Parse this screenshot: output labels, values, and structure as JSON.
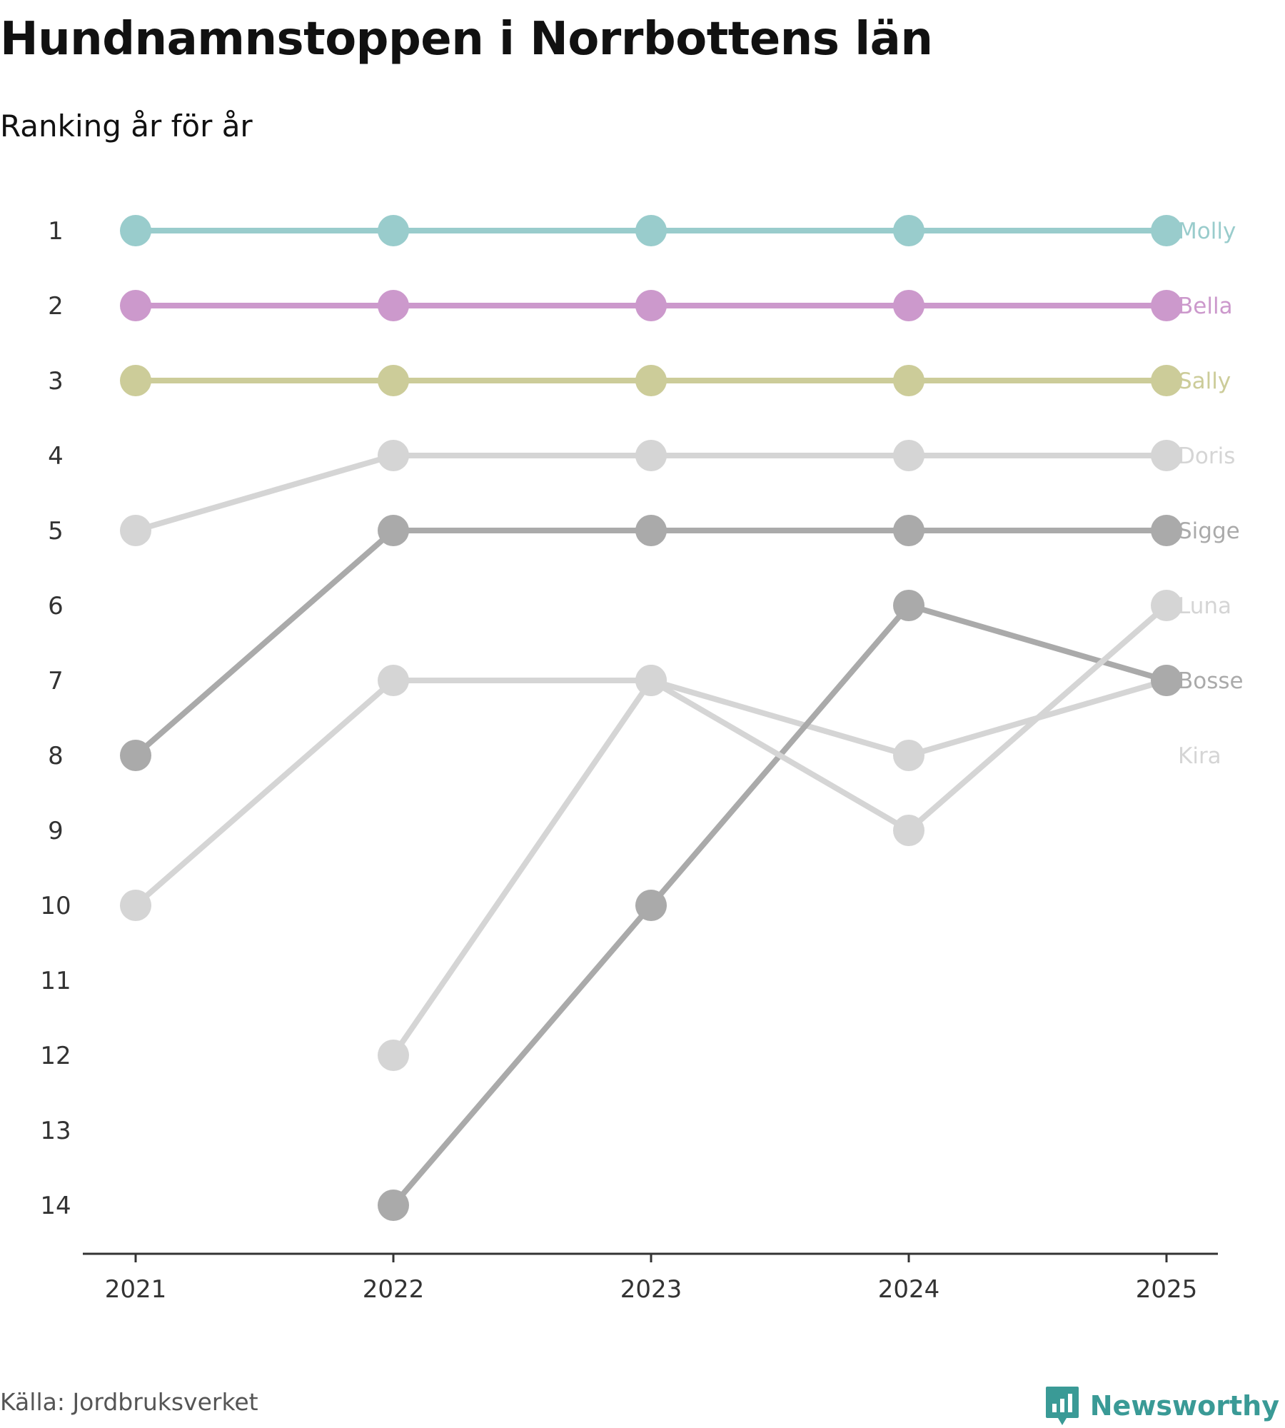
{
  "title": "Hundnamnstoppen i Norrbottens län",
  "subtitle": "Ranking år för år",
  "source": "Källa: Jordbruksverket",
  "brand": {
    "name": "Newsworthy",
    "icon": "newsworthy-logo-icon",
    "color": "#3a9a96"
  },
  "chart_data": {
    "type": "line",
    "title": "Hundnamnstoppen i Norrbottens län",
    "subtitle": "Ranking år för år",
    "xlabel": "",
    "ylabel": "",
    "x": [
      "2021",
      "2022",
      "2023",
      "2024",
      "2025"
    ],
    "y_ticks": [
      "1",
      "2",
      "3",
      "4",
      "5",
      "6",
      "7",
      "8",
      "9",
      "10",
      "11",
      "12",
      "13",
      "14"
    ],
    "ylim": [
      1,
      14
    ],
    "y_inverted": true,
    "grid": false,
    "series": [
      {
        "name": "Molly",
        "color": "#99cccc",
        "values": [
          1,
          1,
          1,
          1,
          1
        ]
      },
      {
        "name": "Bella",
        "color": "#cc99cc",
        "values": [
          2,
          2,
          2,
          2,
          2
        ]
      },
      {
        "name": "Sally",
        "color": "#cccc99",
        "values": [
          3,
          3,
          3,
          3,
          3
        ]
      },
      {
        "name": "Doris",
        "color": "#d5d5d5",
        "values": [
          5,
          4,
          4,
          4,
          4
        ]
      },
      {
        "name": "Sigge",
        "color": "#aaaaaa",
        "values": [
          8,
          5,
          5,
          5,
          5
        ]
      },
      {
        "name": "Luna",
        "color": "#d5d5d5",
        "values": [
          null,
          12,
          7,
          9,
          6
        ]
      },
      {
        "name": "Bosse",
        "color": "#aaaaaa",
        "values": [
          null,
          14,
          10,
          6,
          7
        ]
      },
      {
        "name": "Kira",
        "color": "#d5d5d5",
        "values": [
          10,
          7,
          7,
          8,
          7
        ]
      }
    ]
  }
}
